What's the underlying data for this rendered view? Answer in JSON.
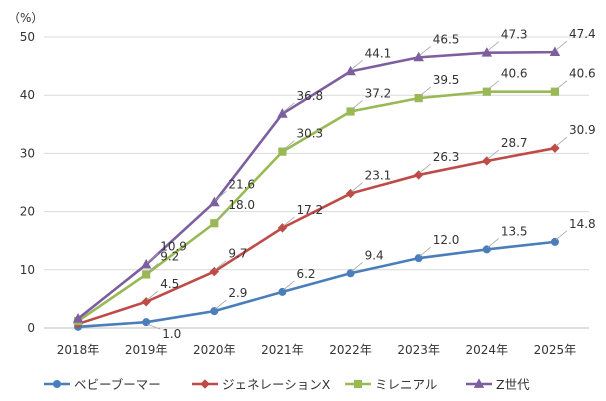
{
  "chart_data": {
    "type": "line",
    "y_unit_label": "（%）",
    "categories": [
      "2018年",
      "2019年",
      "2020年",
      "2021年",
      "2022年",
      "2023年",
      "2024年",
      "2025年"
    ],
    "ylim": [
      0,
      50
    ],
    "yticks": [
      0,
      10,
      20,
      30,
      40,
      50
    ],
    "grid": true,
    "legend_position": "bottom",
    "series": [
      {
        "name": "ベビーブーマー",
        "color": "#4a7ebb",
        "marker": "circle",
        "values": [
          0.2,
          1.0,
          2.9,
          6.2,
          9.4,
          12.0,
          13.5,
          14.8
        ],
        "labels": [
          null,
          "1.0",
          "2.9",
          "6.2",
          "9.4",
          "12.0",
          "13.5",
          "14.8"
        ]
      },
      {
        "name": "ジェネレーションX",
        "color": "#be4b48",
        "marker": "diamond",
        "values": [
          0.7,
          4.5,
          9.7,
          17.2,
          23.1,
          26.3,
          28.7,
          30.9
        ],
        "labels": [
          null,
          "4.5",
          "9.7",
          "17.2",
          "23.1",
          "26.3",
          "28.7",
          "30.9"
        ]
      },
      {
        "name": "ミレニアル",
        "color": "#98b954",
        "marker": "square",
        "values": [
          1.2,
          9.2,
          18.0,
          30.3,
          37.2,
          39.5,
          40.6,
          40.6
        ],
        "labels": [
          null,
          "9.2",
          "18.0",
          "30.3",
          "37.2",
          "39.5",
          "40.6",
          "40.6"
        ]
      },
      {
        "name": "Z世代",
        "color": "#7d5fa0",
        "marker": "triangle",
        "values": [
          1.6,
          10.9,
          21.6,
          36.8,
          44.1,
          46.5,
          47.3,
          47.4
        ],
        "labels": [
          null,
          "10.9",
          "21.6",
          "36.8",
          "44.1",
          "46.5",
          "47.3",
          "47.4"
        ]
      }
    ]
  }
}
